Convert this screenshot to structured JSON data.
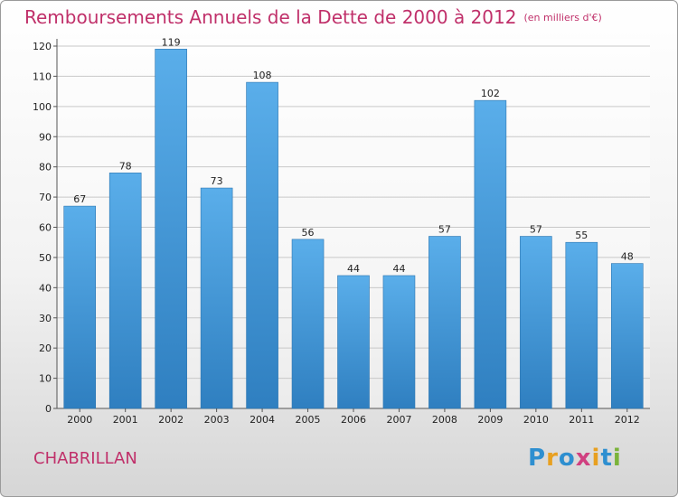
{
  "chart_data": {
    "type": "bar",
    "title": "Remboursements Annuels de la Dette de 2000 à 2012",
    "unit_note": "(en milliers d'€)",
    "categories": [
      "2000",
      "2001",
      "2002",
      "2003",
      "2004",
      "2005",
      "2006",
      "2007",
      "2008",
      "2009",
      "2010",
      "2011",
      "2012"
    ],
    "values": [
      67,
      78,
      119,
      73,
      108,
      56,
      44,
      44,
      57,
      102,
      57,
      55,
      48
    ],
    "ylim": [
      0,
      120
    ],
    "yticks": [
      0,
      10,
      20,
      30,
      40,
      50,
      60,
      70,
      80,
      90,
      100,
      110,
      120
    ],
    "grid": true,
    "bar_color_top": "#5aaeea",
    "bar_color_bottom": "#2f7fc0",
    "title_color": "#c0306a"
  },
  "footer": {
    "commune": "CHABRILLAN",
    "logo_letters": [
      {
        "ch": "P",
        "color": "#2e8fd0"
      },
      {
        "ch": "r",
        "color": "#e8a020"
      },
      {
        "ch": "o",
        "color": "#2e8fd0"
      },
      {
        "ch": "x",
        "color": "#d04080"
      },
      {
        "ch": "i",
        "color": "#e8a020"
      },
      {
        "ch": "t",
        "color": "#2e8fd0"
      },
      {
        "ch": "i",
        "color": "#7ab33a"
      }
    ]
  }
}
